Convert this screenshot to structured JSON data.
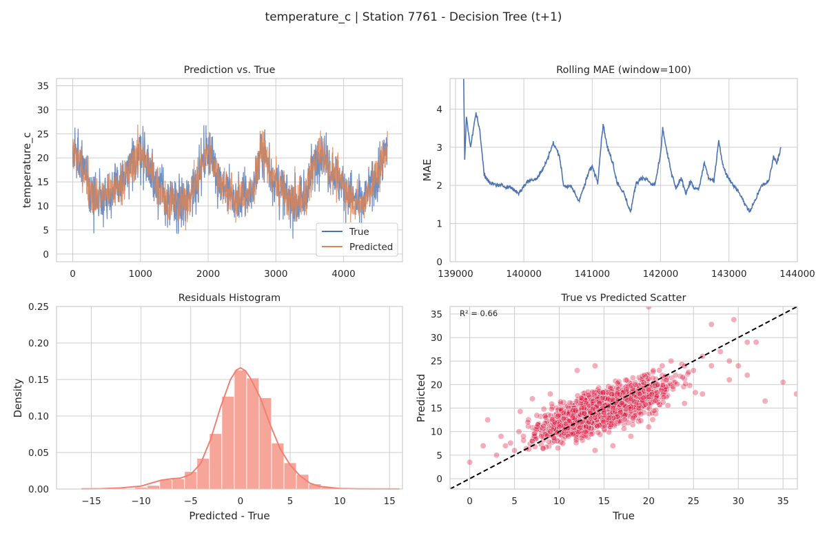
{
  "figure": {
    "title": "temperature_c | Station 7761 - Decision Tree (t+1)"
  },
  "chart_data": [
    {
      "type": "line",
      "title": "Prediction vs. True",
      "xlabel": "",
      "ylabel": "temperature_c",
      "xlim": [
        -240,
        4870
      ],
      "ylim": [
        -1.6,
        36.5
      ],
      "xticks": [
        0,
        1000,
        2000,
        3000,
        4000
      ],
      "yticks": [
        0,
        5,
        10,
        15,
        20,
        25,
        30,
        35
      ],
      "grid": true,
      "legend": {
        "placement": "lower-right",
        "entries": [
          "True",
          "Predicted"
        ]
      },
      "series": [
        {
          "name": "True",
          "color": "#4c72b0",
          "profile": [
            [
              0,
              22
            ],
            [
              150,
              18
            ],
            [
              300,
              12
            ],
            [
              600,
              13
            ],
            [
              800,
              16
            ],
            [
              1000,
              22
            ],
            [
              1150,
              17
            ],
            [
              1400,
              11
            ],
            [
              1650,
              10
            ],
            [
              1850,
              16
            ],
            [
              2000,
              22
            ],
            [
              2150,
              16
            ],
            [
              2400,
              11
            ],
            [
              2650,
              13
            ],
            [
              2800,
              22
            ],
            [
              2950,
              16
            ],
            [
              3200,
              11
            ],
            [
              3400,
              11
            ],
            [
              3650,
              22
            ],
            [
              3800,
              18
            ],
            [
              4050,
              13
            ],
            [
              4250,
              10
            ],
            [
              4450,
              15
            ],
            [
              4650,
              22
            ]
          ]
        },
        {
          "name": "Predicted",
          "color": "#dd8452",
          "profile": [
            [
              0,
              22
            ],
            [
              150,
              18
            ],
            [
              300,
              12
            ],
            [
              600,
              13
            ],
            [
              800,
              16
            ],
            [
              1000,
              22
            ],
            [
              1150,
              17
            ],
            [
              1400,
              11
            ],
            [
              1650,
              10
            ],
            [
              1850,
              16
            ],
            [
              2000,
              22
            ],
            [
              2150,
              16
            ],
            [
              2400,
              11
            ],
            [
              2650,
              13
            ],
            [
              2800,
              22
            ],
            [
              2950,
              16
            ],
            [
              3200,
              11
            ],
            [
              3400,
              11
            ],
            [
              3650,
              22
            ],
            [
              3800,
              18
            ],
            [
              4050,
              13
            ],
            [
              4250,
              10
            ],
            [
              4450,
              15
            ],
            [
              4650,
              22
            ]
          ]
        }
      ]
    },
    {
      "type": "line",
      "title": "Rolling MAE (window=100)",
      "xlabel": "",
      "ylabel": "MAE",
      "xlim": [
        138920,
        144000
      ],
      "ylim": [
        0,
        4.8
      ],
      "xticks": [
        139000,
        140000,
        141000,
        142000,
        143000,
        144000
      ],
      "yticks": [
        0,
        1,
        2,
        3,
        4
      ],
      "grid": true,
      "series": [
        {
          "name": "",
          "color": "#4c72b0",
          "points": [
            [
              139120,
              4.8
            ],
            [
              139135,
              2.7
            ],
            [
              139160,
              3.8
            ],
            [
              139220,
              3.0
            ],
            [
              139300,
              3.9
            ],
            [
              139350,
              3.5
            ],
            [
              139420,
              2.3
            ],
            [
              139500,
              2.05
            ],
            [
              139650,
              2.0
            ],
            [
              139800,
              1.95
            ],
            [
              139930,
              1.8
            ],
            [
              140050,
              2.1
            ],
            [
              140200,
              2.2
            ],
            [
              140300,
              2.5
            ],
            [
              140430,
              3.1
            ],
            [
              140520,
              2.8
            ],
            [
              140580,
              2.0
            ],
            [
              140700,
              1.95
            ],
            [
              140800,
              1.6
            ],
            [
              140870,
              1.9
            ],
            [
              140960,
              2.4
            ],
            [
              141000,
              2.5
            ],
            [
              141080,
              2.1
            ],
            [
              141140,
              3.3
            ],
            [
              141160,
              3.6
            ],
            [
              141220,
              3.0
            ],
            [
              141300,
              2.6
            ],
            [
              141360,
              2.1
            ],
            [
              141460,
              1.8
            ],
            [
              141560,
              1.3
            ],
            [
              141640,
              2.05
            ],
            [
              141720,
              2.2
            ],
            [
              141800,
              2.15
            ],
            [
              141880,
              2.0
            ],
            [
              141920,
              2.05
            ],
            [
              142000,
              2.8
            ],
            [
              142030,
              3.5
            ],
            [
              142090,
              2.9
            ],
            [
              142160,
              2.3
            ],
            [
              142230,
              1.9
            ],
            [
              142300,
              2.2
            ],
            [
              142370,
              1.8
            ],
            [
              142440,
              2.1
            ],
            [
              142500,
              1.9
            ],
            [
              142560,
              1.9
            ],
            [
              142640,
              2.6
            ],
            [
              142700,
              2.2
            ],
            [
              142780,
              2.1
            ],
            [
              142850,
              3.2
            ],
            [
              142900,
              2.6
            ],
            [
              142960,
              2.3
            ],
            [
              143030,
              2.1
            ],
            [
              143150,
              1.8
            ],
            [
              143300,
              1.3
            ],
            [
              143380,
              1.6
            ],
            [
              143480,
              2.0
            ],
            [
              143580,
              2.1
            ],
            [
              143650,
              2.75
            ],
            [
              143700,
              2.6
            ],
            [
              143760,
              3.0
            ]
          ]
        }
      ]
    },
    {
      "type": "bar",
      "title": "Residuals Histogram",
      "xlabel": "Predicted - True",
      "ylabel": "Density",
      "xlim": [
        -18.5,
        16.3
      ],
      "ylim": [
        0,
        0.25
      ],
      "xticks": [
        -15,
        -10,
        -5,
        0,
        5,
        10,
        15
      ],
      "yticks": [
        0.0,
        0.05,
        0.1,
        0.15,
        0.2,
        0.25
      ],
      "ytick_labels": [
        "0.00",
        "0.05",
        "0.10",
        "0.15",
        "0.20",
        "0.25"
      ],
      "grid": true,
      "bin_width": 1.25,
      "bins": [
        [
          -12.5,
          0.0003
        ],
        [
          -11.25,
          0.0008
        ],
        [
          -10,
          0.0025
        ],
        [
          -8.75,
          0.005
        ],
        [
          -7.5,
          0.013
        ],
        [
          -6.25,
          0.014
        ],
        [
          -5,
          0.024
        ],
        [
          -3.75,
          0.042
        ],
        [
          -2.5,
          0.076
        ],
        [
          -1.25,
          0.127
        ],
        [
          0,
          0.163
        ],
        [
          1.25,
          0.152
        ],
        [
          2.5,
          0.125
        ],
        [
          3.75,
          0.063
        ],
        [
          5,
          0.036
        ],
        [
          6.25,
          0.02
        ],
        [
          7.5,
          0.007
        ],
        [
          8.75,
          0.003
        ],
        [
          10,
          0.0009
        ]
      ],
      "kde": [
        [
          -16,
          0.0002
        ],
        [
          -14,
          0.0005
        ],
        [
          -12,
          0.0015
        ],
        [
          -10,
          0.004
        ],
        [
          -9,
          0.008
        ],
        [
          -8,
          0.012
        ],
        [
          -7,
          0.014
        ],
        [
          -6,
          0.015
        ],
        [
          -5,
          0.02
        ],
        [
          -4,
          0.035
        ],
        [
          -3,
          0.068
        ],
        [
          -2,
          0.112
        ],
        [
          -1,
          0.15
        ],
        [
          -0.4,
          0.163
        ],
        [
          0,
          0.166
        ],
        [
          0.5,
          0.162
        ],
        [
          1,
          0.152
        ],
        [
          2,
          0.125
        ],
        [
          3,
          0.088
        ],
        [
          4,
          0.055
        ],
        [
          5,
          0.033
        ],
        [
          6,
          0.018
        ],
        [
          7,
          0.008
        ],
        [
          8,
          0.0035
        ],
        [
          10,
          0.0008
        ],
        [
          12,
          0.0002
        ],
        [
          16,
          0.0001
        ]
      ],
      "colors": {
        "bar": "#f6a599",
        "line": "#f07f72"
      }
    },
    {
      "type": "scatter",
      "title": "True vs Predicted Scatter",
      "xlabel": "True",
      "ylabel": "Predicted",
      "xlim": [
        -2.2,
        36.6
      ],
      "ylim": [
        -2.2,
        36.6
      ],
      "xticks": [
        0,
        5,
        10,
        15,
        20,
        25,
        30,
        35
      ],
      "yticks": [
        0,
        5,
        10,
        15,
        20,
        25,
        30,
        35
      ],
      "grid": true,
      "annotation": "R² = 0.66",
      "point_color": "#dc143c",
      "sample_points": [
        [
          0,
          3.5
        ],
        [
          1.5,
          7
        ],
        [
          2,
          12.5
        ],
        [
          3,
          5
        ],
        [
          3.5,
          9
        ],
        [
          4,
          7
        ],
        [
          5,
          6
        ],
        [
          5.5,
          10
        ],
        [
          6,
          9
        ],
        [
          6.5,
          12
        ],
        [
          7,
          8
        ],
        [
          7.5,
          11
        ],
        [
          8,
          9
        ],
        [
          8.5,
          13
        ],
        [
          9,
          10
        ],
        [
          9.5,
          12
        ],
        [
          10,
          11
        ],
        [
          10.5,
          14
        ],
        [
          11,
          9
        ],
        [
          11.5,
          13
        ],
        [
          12,
          12
        ],
        [
          12.5,
          15
        ],
        [
          13,
          11
        ],
        [
          13.5,
          14
        ],
        [
          14,
          13
        ],
        [
          14.5,
          16
        ],
        [
          15,
          14
        ],
        [
          15.5,
          17
        ],
        [
          16,
          15
        ],
        [
          16.5,
          18
        ],
        [
          17,
          16
        ],
        [
          17.5,
          19
        ],
        [
          18,
          17
        ],
        [
          18.5,
          20
        ],
        [
          19,
          18
        ],
        [
          19.5,
          22
        ],
        [
          20,
          19
        ],
        [
          20.5,
          23
        ],
        [
          21,
          20
        ],
        [
          21.5,
          24
        ],
        [
          22,
          21
        ],
        [
          22.5,
          25
        ],
        [
          23,
          22
        ],
        [
          24,
          24
        ],
        [
          25,
          23
        ],
        [
          26,
          26
        ],
        [
          27,
          24
        ],
        [
          28,
          27
        ],
        [
          29,
          25
        ],
        [
          30,
          24
        ],
        [
          32,
          29
        ],
        [
          33,
          16.5
        ],
        [
          35,
          20.5
        ],
        [
          36.5,
          18
        ],
        [
          20,
          36.5
        ],
        [
          29.5,
          33.8
        ],
        [
          27,
          32.8
        ],
        [
          31,
          29
        ],
        [
          12,
          23
        ],
        [
          14,
          24
        ],
        [
          9,
          18
        ],
        [
          7,
          17
        ],
        [
          16,
          7
        ],
        [
          14,
          6
        ],
        [
          20,
          11
        ],
        [
          18,
          9
        ],
        [
          24,
          16
        ],
        [
          26,
          18
        ],
        [
          29,
          21
        ],
        [
          31,
          22
        ]
      ],
      "reference_line": [
        [
          -2.2,
          -2.2
        ],
        [
          36.6,
          36.6
        ]
      ]
    }
  ]
}
